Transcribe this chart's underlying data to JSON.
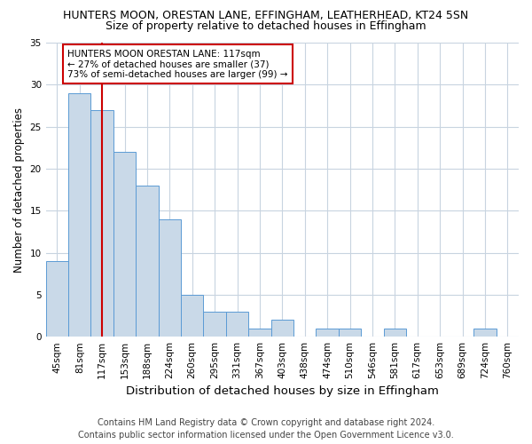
{
  "title_line1": "HUNTERS MOON, ORESTAN LANE, EFFINGHAM, LEATHERHEAD, KT24 5SN",
  "title_line2": "Size of property relative to detached houses in Effingham",
  "xlabel": "Distribution of detached houses by size in Effingham",
  "ylabel": "Number of detached properties",
  "categories": [
    "45sqm",
    "81sqm",
    "117sqm",
    "153sqm",
    "188sqm",
    "224sqm",
    "260sqm",
    "295sqm",
    "331sqm",
    "367sqm",
    "403sqm",
    "438sqm",
    "474sqm",
    "510sqm",
    "546sqm",
    "581sqm",
    "617sqm",
    "653sqm",
    "689sqm",
    "724sqm",
    "760sqm"
  ],
  "values": [
    9,
    29,
    27,
    22,
    18,
    14,
    5,
    3,
    3,
    1,
    2,
    0,
    1,
    1,
    0,
    1,
    0,
    0,
    0,
    1,
    0
  ],
  "bar_color": "#c9d9e8",
  "bar_edge_color": "#5b9bd5",
  "red_line_index": 2,
  "red_line_color": "#cc0000",
  "annotation_text": "HUNTERS MOON ORESTAN LANE: 117sqm\n← 27% of detached houses are smaller (37)\n73% of semi-detached houses are larger (99) →",
  "annotation_box_color": "#ffffff",
  "annotation_box_edge_color": "#cc0000",
  "ylim": [
    0,
    35
  ],
  "yticks": [
    0,
    5,
    10,
    15,
    20,
    25,
    30,
    35
  ],
  "footer_line1": "Contains HM Land Registry data © Crown copyright and database right 2024.",
  "footer_line2": "Contains public sector information licensed under the Open Government Licence v3.0.",
  "bg_color": "#ffffff",
  "grid_color": "#c8d4e0",
  "title_fontsize": 9,
  "subtitle_fontsize": 9,
  "tick_fontsize": 7.5,
  "ylabel_fontsize": 8.5,
  "xlabel_fontsize": 9.5,
  "footer_fontsize": 7,
  "ann_fontsize": 7.5
}
